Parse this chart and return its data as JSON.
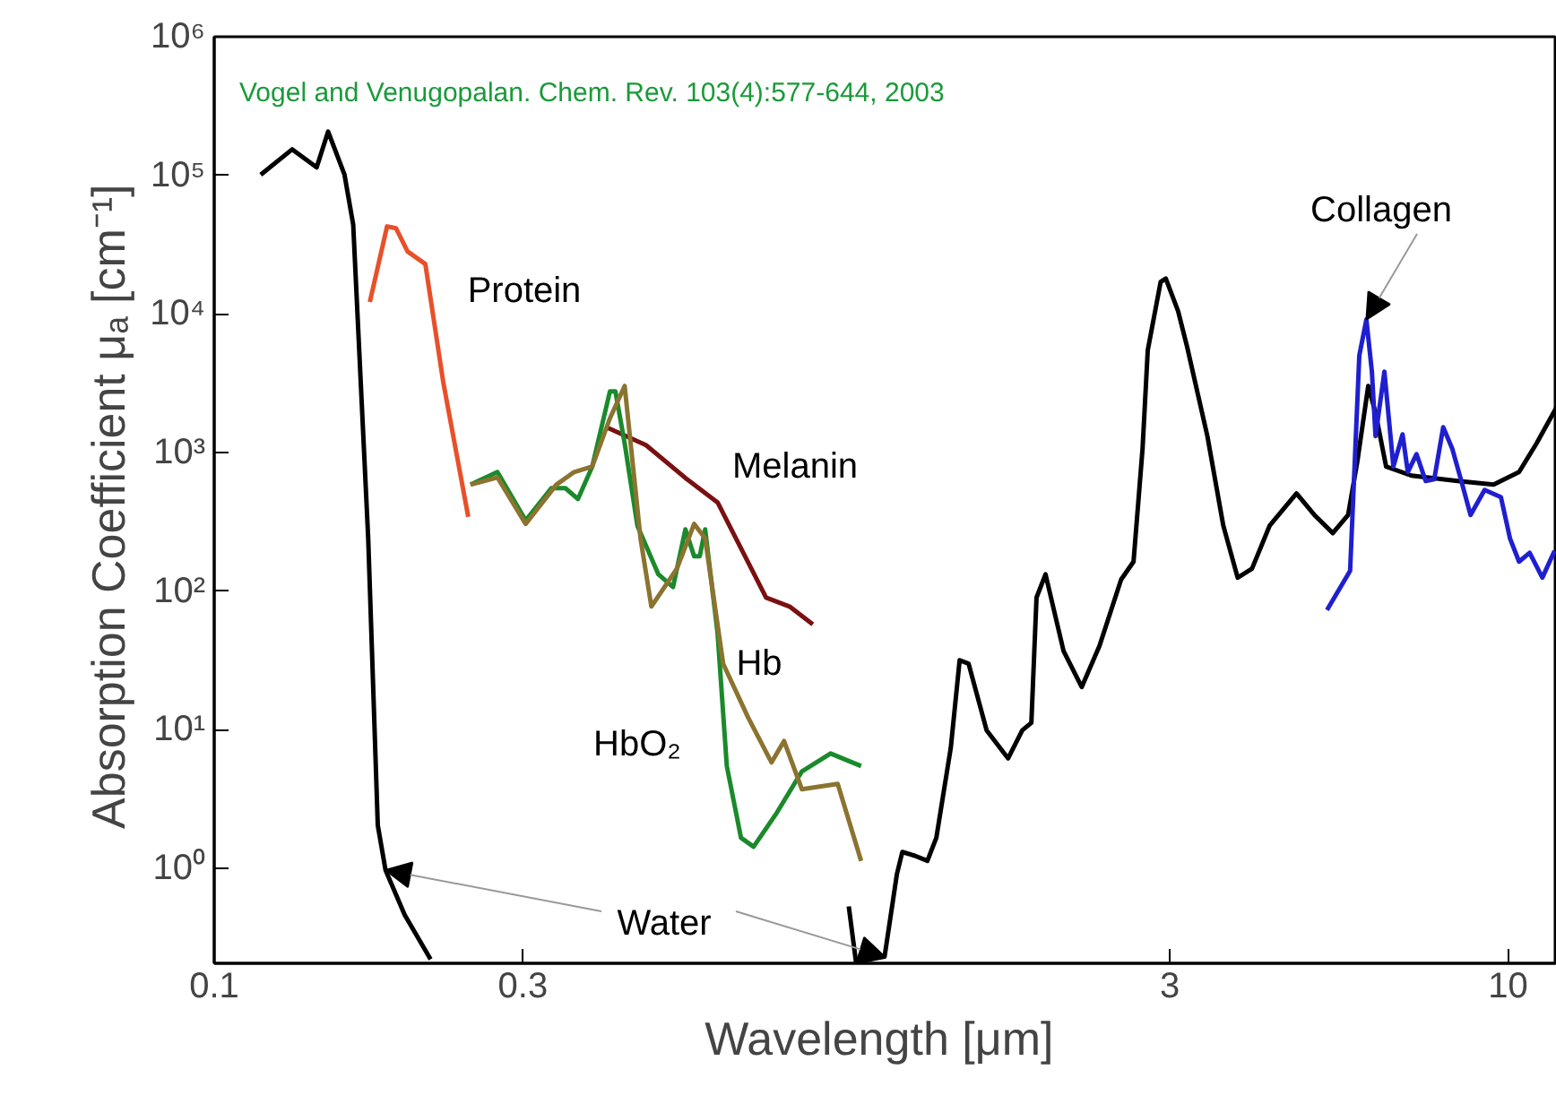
{
  "chart_data": {
    "type": "line",
    "xlabel": "Wavelength  [μm]",
    "ylabel": "Absorption Coefficient μₐ  [cm⁻¹]",
    "log": "xy",
    "grid": false,
    "legend": false,
    "line_style": "solid",
    "marker": "none",
    "xlim": [
      0.1,
      11.9
    ],
    "ylim": [
      0.206,
      1000000
    ],
    "xticks": [
      0.1,
      0.3,
      3,
      10
    ],
    "yticks": [
      {
        "value": 1,
        "label": "10⁰"
      },
      {
        "value": 10,
        "label": "10¹"
      },
      {
        "value": 100,
        "label": "10²"
      },
      {
        "value": 1000,
        "label": "10³"
      },
      {
        "value": 10000,
        "label": "10⁴"
      },
      {
        "value": 100000,
        "label": "10⁵"
      },
      {
        "value": 1000000,
        "label": "10⁶"
      }
    ],
    "series": [
      {
        "name": "Water",
        "color": "#000000",
        "x": [
          0.118,
          0.132,
          0.144,
          0.15,
          0.159,
          0.164,
          0.173,
          0.179,
          0.184,
          0.197,
          0.216,
          0.933,
          0.957,
          0.982,
          1.087,
          1.136,
          1.158,
          1.211,
          1.266,
          1.307,
          1.376,
          1.42,
          1.466,
          1.563,
          1.687,
          1.775,
          1.833,
          1.867,
          1.928,
          2.056,
          2.193,
          2.336,
          2.523,
          2.637,
          2.723,
          2.774,
          2.904,
          2.958,
          3.09,
          3.19,
          3.43,
          3.63,
          3.82,
          4.02,
          4.28,
          4.71,
          5.02,
          5.36,
          5.66,
          5.85,
          6.08,
          6.24,
          6.48,
          7.09,
          8.36,
          9.5,
          10.4,
          11.07,
          11.88
        ],
        "values": [
          101000,
          154000,
          114000,
          207000,
          101000,
          44100,
          240,
          2.04,
          0.97,
          0.46,
          0.22,
          null,
          0.53,
          0.21,
          0.23,
          0.91,
          1.31,
          1.23,
          1.13,
          1.66,
          7.4,
          31.7,
          29.9,
          9.9,
          6.2,
          9.9,
          11.2,
          89.9,
          132,
          36.8,
          20.3,
          40.2,
          121,
          163,
          1064,
          5480,
          17000,
          18000,
          10500,
          5820,
          1312,
          296,
          125,
          145,
          296,
          506,
          354,
          262,
          354,
          865,
          3020,
          1930,
          791,
          681,
          622,
          586,
          722,
          1164,
          2110
        ]
      },
      {
        "name": "Protein",
        "color": "#e8502a",
        "x": [
          0.174,
          0.185,
          0.191,
          0.199,
          0.212,
          0.226,
          0.247
        ],
        "values": [
          12200,
          42800,
          41500,
          28200,
          22900,
          3200,
          343
        ]
      },
      {
        "name": "Melanin",
        "color": "#7a1010",
        "x": [
          0.404,
          0.465,
          0.538,
          0.6,
          0.713,
          0.775,
          0.842
        ],
        "values": [
          1521,
          1130,
          641,
          436,
          89.8,
          77.4,
          57.5
        ]
      },
      {
        "name": "HbO₂",
        "color": "#1a8a2a",
        "x": [
          0.249,
          0.274,
          0.303,
          0.332,
          0.349,
          0.365,
          0.384,
          0.409,
          0.417,
          0.431,
          0.451,
          0.486,
          0.512,
          0.535,
          0.552,
          0.563,
          0.574,
          0.6,
          0.62,
          0.652,
          0.682,
          0.741,
          0.81,
          0.897,
          1.0
        ],
        "values": [
          586,
          722,
          323,
          553,
          553,
          462,
          791,
          2760,
          2760,
          1164,
          296,
          132,
          107,
          279,
          178,
          178,
          279,
          49.5,
          5.46,
          1.66,
          1.43,
          2.52,
          5.0,
          6.73,
          5.46
        ]
      },
      {
        "name": "Hb",
        "color": "#8b7330",
        "x": [
          0.249,
          0.274,
          0.303,
          0.338,
          0.36,
          0.384,
          0.409,
          0.431,
          0.456,
          0.474,
          0.519,
          0.552,
          0.574,
          0.612,
          0.669,
          0.727,
          0.76,
          0.81,
          0.92,
          1.0
        ],
        "values": [
          586,
          661,
          305,
          586,
          722,
          791,
          1766,
          3020,
          240,
          77.4,
          145,
          305,
          240,
          29.9,
          12.2,
          5.8,
          8.28,
          3.71,
          4.06,
          1.13
        ]
      },
      {
        "name": "Collagen",
        "color": "#1f1fd0",
        "x": [
          5.25,
          5.7,
          5.89,
          6.04,
          6.16,
          6.24,
          6.44,
          6.65,
          6.87,
          7.0,
          7.22,
          7.46,
          7.69,
          7.94,
          8.2,
          8.47,
          8.75,
          9.2,
          9.75,
          10.07,
          10.4,
          10.8,
          11.3,
          11.8
        ],
        "values": [
          73,
          140,
          5010,
          9100,
          3830,
          1312,
          3830,
          791,
          1352,
          722,
          973,
          622,
          641,
          1521,
          1064,
          622,
          354,
          537,
          476,
          240,
          163,
          189,
          125,
          195
        ]
      }
    ],
    "annotations": [
      "Vogel and Venugopalan. Chem. Rev. 103(4):577-644, 2003"
    ]
  }
}
